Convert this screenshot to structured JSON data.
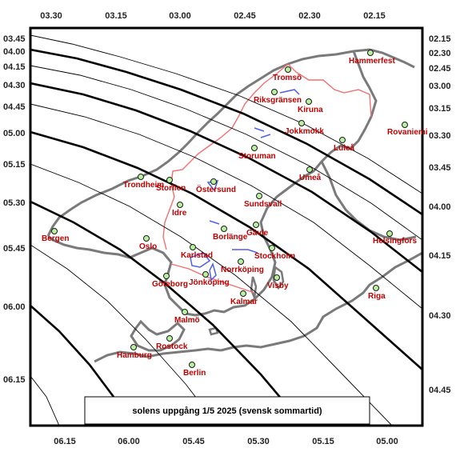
{
  "colors": {
    "coast": "#7a7a7a",
    "border": "#f07070",
    "water": "#4f5fe6",
    "city_dot": "#b8f0a0",
    "city_label": "#c00000",
    "line": "#000000"
  },
  "caption": "solens uppgång   1/5 2025   (svensk sommartid)",
  "top_axis": [
    "03.30",
    "03.15",
    "03.00",
    "02.45",
    "02.30",
    "02.15"
  ],
  "bottom_axis": [
    "06.15",
    "06.00",
    "05.45",
    "05.30",
    "05.15",
    "05.00"
  ],
  "left_axis": [
    "03.45",
    "04.00",
    "04.15",
    "04.30",
    "04.45",
    "05.00",
    "05.15",
    "05.30",
    "05.45",
    "06.00",
    "06.15"
  ],
  "right_axis": [
    "02.15",
    "02.30",
    "02.45",
    "03.00",
    "03.15",
    "03.30",
    "03.45",
    "04.00",
    "04.15",
    "04.30",
    "04.45"
  ],
  "cities": [
    {
      "name": "Hammerfest"
    },
    {
      "name": "Tromsö"
    },
    {
      "name": "Riksgränsen"
    },
    {
      "name": "Kiruna"
    },
    {
      "name": "Jokkmokk"
    },
    {
      "name": "Luleå"
    },
    {
      "name": "Rovaniemi"
    },
    {
      "name": "Storuman"
    },
    {
      "name": "Umeå"
    },
    {
      "name": "Trondheim"
    },
    {
      "name": "Storlien"
    },
    {
      "name": "Östersund"
    },
    {
      "name": "Sundsvall"
    },
    {
      "name": "Idre"
    },
    {
      "name": "Bergen"
    },
    {
      "name": "Oslo"
    },
    {
      "name": "Borlänge"
    },
    {
      "name": "Gävle"
    },
    {
      "name": "Helsingfors"
    },
    {
      "name": "Karlstad"
    },
    {
      "name": "Stockholm"
    },
    {
      "name": "Norrköping"
    },
    {
      "name": "Göteborg"
    },
    {
      "name": "Jönköping"
    },
    {
      "name": "Visby"
    },
    {
      "name": "Kalmar"
    },
    {
      "name": "Riga"
    },
    {
      "name": "Malmö"
    },
    {
      "name": "Rostock"
    },
    {
      "name": "Hamburg"
    },
    {
      "name": "Berlin"
    }
  ]
}
